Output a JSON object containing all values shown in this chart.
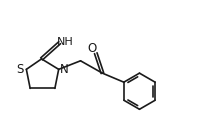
{
  "bg_color": "#ffffff",
  "line_color": "#1a1a1a",
  "line_width": 1.2,
  "font_size_S": 8.5,
  "font_size_N": 8.5,
  "font_size_O": 8.5,
  "font_size_NH": 8.0,
  "figsize": [
    2.01,
    1.33
  ],
  "dpi": 100,
  "xlim": [
    0.0,
    10.5
  ],
  "ylim": [
    1.5,
    7.5
  ]
}
